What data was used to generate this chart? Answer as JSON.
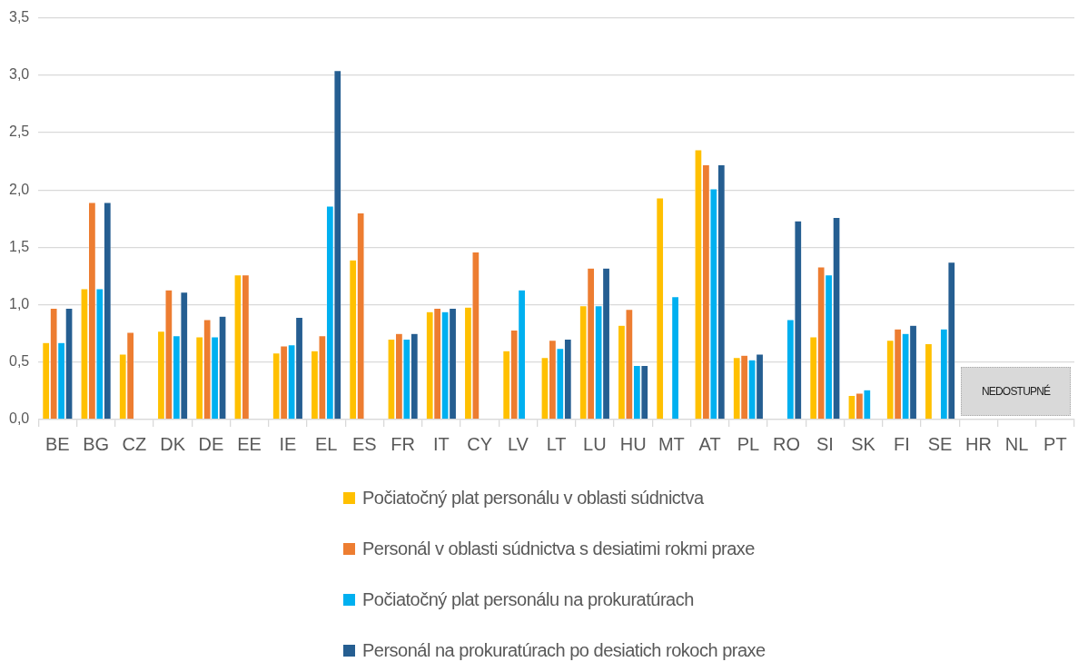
{
  "chart_data": {
    "type": "bar",
    "categories": [
      "BE",
      "BG",
      "CZ",
      "DK",
      "DE",
      "EE",
      "IE",
      "EL",
      "ES",
      "FR",
      "IT",
      "CY",
      "LV",
      "LT",
      "LU",
      "HU",
      "MT",
      "AT",
      "PL",
      "RO",
      "SI",
      "SK",
      "FI",
      "SE",
      "HR",
      "NL",
      "PT"
    ],
    "series": [
      {
        "name": "Počiatočný plat personálu v oblasti súdnictva",
        "color": "#ffc000",
        "values": [
          0.67,
          1.14,
          0.57,
          0.77,
          0.72,
          1.26,
          0.58,
          0.6,
          1.39,
          0.7,
          0.94,
          0.98,
          0.6,
          0.54,
          0.99,
          0.82,
          1.93,
          2.35,
          0.54,
          null,
          0.72,
          0.21,
          0.69,
          0.66,
          null,
          null,
          null
        ]
      },
      {
        "name": "Personál v oblasti súdnictva s desiatimi rokmi praxe",
        "color": "#ed7d31",
        "values": [
          0.97,
          1.89,
          0.76,
          1.13,
          0.87,
          1.26,
          0.64,
          0.73,
          1.8,
          0.75,
          0.97,
          1.46,
          0.78,
          0.69,
          1.32,
          0.96,
          null,
          2.22,
          0.56,
          null,
          1.33,
          0.23,
          0.79,
          null,
          null,
          null,
          null
        ]
      },
      {
        "name": "Počiatočný plat personálu na prokuratúrach",
        "color": "#00b0f0",
        "values": [
          0.67,
          1.14,
          null,
          0.73,
          0.72,
          null,
          0.65,
          1.86,
          null,
          0.7,
          0.94,
          null,
          1.13,
          0.62,
          0.99,
          0.47,
          1.07,
          2.01,
          0.52,
          0.87,
          1.26,
          0.26,
          0.75,
          0.79,
          null,
          null,
          null
        ]
      },
      {
        "name": "Personál na prokuratúrach po desiatich rokoch praxe",
        "color": "#255e91",
        "values": [
          0.97,
          1.89,
          null,
          1.11,
          0.9,
          null,
          0.89,
          3.04,
          null,
          0.75,
          0.97,
          null,
          null,
          0.7,
          1.32,
          0.47,
          null,
          2.22,
          0.57,
          1.73,
          1.76,
          null,
          0.82,
          1.37,
          null,
          null,
          null
        ]
      }
    ],
    "ylim": [
      0,
      3.5
    ],
    "yticks": [
      {
        "value": 0,
        "label": "0,0"
      },
      {
        "value": 0.5,
        "label": "0,5"
      },
      {
        "value": 1,
        "label": "1,0"
      },
      {
        "value": 1.5,
        "label": "1,5"
      },
      {
        "value": 2,
        "label": "2,0"
      },
      {
        "value": 2.5,
        "label": "2,5"
      },
      {
        "value": 3,
        "label": "3,0"
      },
      {
        "value": 3.5,
        "label": "3,5"
      }
    ],
    "grid": "y",
    "legend": "bottom",
    "annotations": [
      "NEDOSTUPNÉ"
    ]
  }
}
